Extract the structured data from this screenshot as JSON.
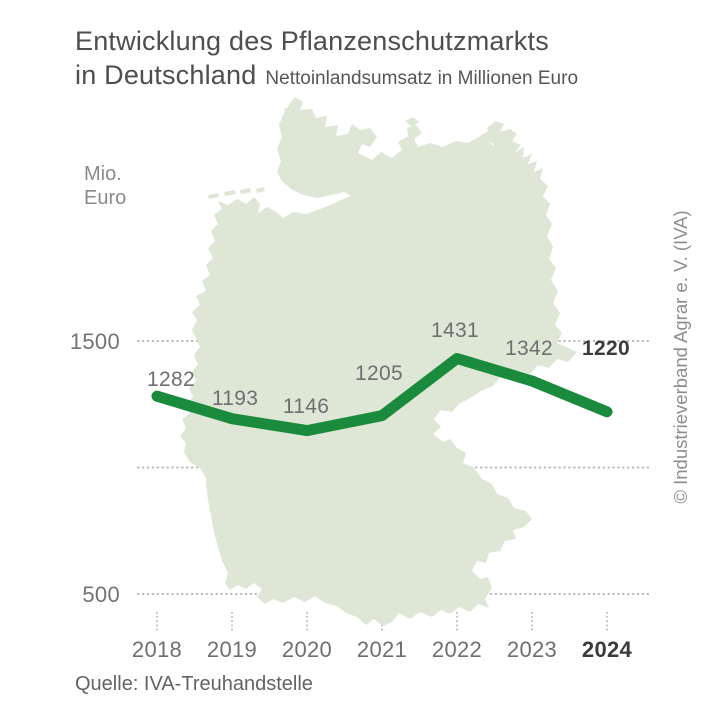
{
  "header": {
    "title_line1": "Entwicklung des Pflanzenschutzmarkts",
    "title_line2": "in Deutschland",
    "subtitle": "Nettoinlandsumsatz in Millionen Euro"
  },
  "y_axis": {
    "unit_line1": "Mio.",
    "unit_line2": "Euro",
    "tick_top": "1500",
    "tick_bottom": "500"
  },
  "chart_data": {
    "type": "line",
    "title": "Entwicklung des Pflanzenschutzmarkts in Deutschland",
    "subtitle": "Nettoinlandsumsatz in Millionen Euro",
    "categories": [
      "2018",
      "2019",
      "2020",
      "2021",
      "2022",
      "2023",
      "2024"
    ],
    "values": [
      1282,
      1193,
      1146,
      1205,
      1431,
      1342,
      1220
    ],
    "xlabel": "",
    "ylabel": "Mio. Euro",
    "ylim": [
      500,
      1500
    ],
    "gridline_values": [
      1500,
      1000,
      500
    ],
    "labeled_y_ticks": [
      1500,
      500
    ],
    "emphasized_category": "2024",
    "line_color": "#1a8a3c",
    "legend": "none",
    "grid": "dotted-horizontal",
    "background_image": "Germany map silhouette"
  },
  "map": {
    "name": "Deutschland-Silhouette",
    "fill": "#dee7d6"
  },
  "source": {
    "label": "Quelle: IVA-Treuhandstelle"
  },
  "credit": {
    "label": "© Industrieverband Agrar e. V. (IVA)"
  },
  "colors": {
    "background": "#ffffff",
    "title_text": "#4d4e50",
    "label_text": "#6f6f71",
    "emphasis_text": "#3b3b3d",
    "muted_text": "#8a8a8c",
    "grid_dots": "#b6b6b8",
    "line_green": "#1a8a3c",
    "map_fill": "#dee7d6"
  }
}
